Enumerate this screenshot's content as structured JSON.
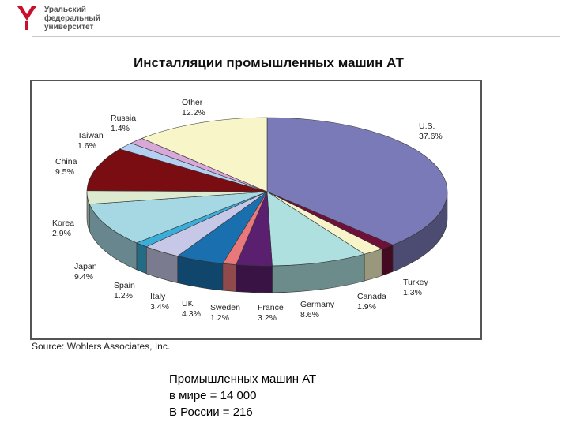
{
  "header": {
    "university_lines": [
      "Уральский",
      "федеральный",
      "университет"
    ],
    "accent_color": "#c8102e"
  },
  "slide": {
    "title": "Инсталляции промышленных машин АТ",
    "note_lines": [
      "Промышленных машин АТ",
      "в мире = 14 000",
      "В России = 216"
    ]
  },
  "chart_data": {
    "type": "pie",
    "style": "3d",
    "source": "Source: Wohlers Associates, Inc.",
    "slices": [
      {
        "label": "U.S.",
        "value_text": "37.6%",
        "value": 37.6,
        "color": "#7a7ab8"
      },
      {
        "label": "Turkey",
        "value_text": "1.3%",
        "value": 1.3,
        "color": "#6e1037"
      },
      {
        "label": "Canada",
        "value_text": "1.9%",
        "value": 1.9,
        "color": "#f6f4c8"
      },
      {
        "label": "Germany",
        "value_text": "8.6%",
        "value": 8.6,
        "color": "#aee0e0"
      },
      {
        "label": "France",
        "value_text": "3.2%",
        "value": 3.2,
        "color": "#5a1f6e"
      },
      {
        "label": "Sweden",
        "value_text": "1.2%",
        "value": 1.2,
        "color": "#e8787a"
      },
      {
        "label": "UK",
        "value_text": "4.3%",
        "value": 4.3,
        "color": "#1a6fae"
      },
      {
        "label": "Italy",
        "value_text": "3.4%",
        "value": 3.4,
        "color": "#c7c7e8"
      },
      {
        "label": "Spain",
        "value_text": "1.2%",
        "value": 1.2,
        "color": "#3aaed8"
      },
      {
        "label": "Japan",
        "value_text": "9.4%",
        "value": 9.4,
        "color": "#a6d8e4"
      },
      {
        "label": "Korea",
        "value_text": "2.9%",
        "value": 2.9,
        "color": "#dcead0"
      },
      {
        "label": "China",
        "value_text": "9.5%",
        "value": 9.5,
        "color": "#7a0d12"
      },
      {
        "label": "Taiwan",
        "value_text": "1.6%",
        "value": 1.6,
        "color": "#b4cff0"
      },
      {
        "label": "Russia",
        "value_text": "1.4%",
        "value": 1.4,
        "color": "#d8a8d8"
      },
      {
        "label": "Other",
        "value_text": "12.2%",
        "value": 12.2,
        "color": "#f8f6c8"
      }
    ]
  }
}
